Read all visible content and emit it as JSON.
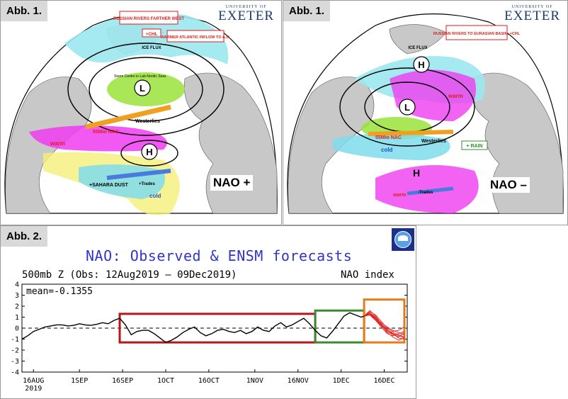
{
  "figures": {
    "fig1_label": "Abb. 1.",
    "fig2_label": "Abb. 2."
  },
  "brand": {
    "university_small": "UNIVERSITY OF",
    "university_name": "EXETER"
  },
  "nao_positive_map": {
    "phase_label": "NAO +",
    "annotations": {
      "russian_rivers": "RUSSIAN RIVERS FARTHER WEST",
      "chl": "+CHL",
      "warmer_atlantic": "WARMER ATLANTIC INFLOW TO A.O.",
      "ice_flux": "ICE FLUX",
      "storm_centre": "Storm Centre in Lab-Nordic Seas",
      "westerlies": "Westerlies",
      "warm": "warm",
      "cold": "cold",
      "sahara_dust": "+SAHARA DUST",
      "trades": "+Trades",
      "low": "L",
      "high": "H",
      "nac": "55Mio NAC"
    }
  },
  "nao_negative_map": {
    "phase_label": "NAO –",
    "annotations": {
      "russian_rivers": "RUSSIAN RIVERS TO EURASIAN BASIN, +CHL",
      "ice_flux": "ICE FLUX",
      "warm": "warm",
      "cold": "cold",
      "rain": "+ RAIN",
      "trades": "-Trades",
      "westerlies": "Westerlies",
      "low": "L",
      "high_north": "H",
      "high_south": "H",
      "nac": "55Mio NAC"
    }
  },
  "chart": {
    "title": "NAO: Observed & ENSM forecasts",
    "subtitle": "500mb Z (Obs: 12Aug2019 – 09Dec2019)",
    "index_label": "NAO index",
    "mean_label": "mean=-0.1355",
    "logo_text": "NOAA"
  },
  "chart_data": {
    "type": "line",
    "title": "NAO: Observed & ENSM forecasts",
    "subtitle": "500mb Z (Obs: 12Aug2019 – 09Dec2019)",
    "ylabel": "NAO index",
    "ylim": [
      -4,
      4
    ],
    "xlim": [
      "2019-08-12",
      "2019-12-24"
    ],
    "yticks": [
      -4,
      -3,
      -2,
      -1,
      0,
      1,
      2,
      3,
      4
    ],
    "xticks": [
      {
        "date": "2019-08-16",
        "label": "16AUG",
        "sublabel": "2019"
      },
      {
        "date": "2019-09-01",
        "label": "1SEP"
      },
      {
        "date": "2019-09-16",
        "label": "16SEP"
      },
      {
        "date": "2019-10-01",
        "label": "1OCT"
      },
      {
        "date": "2019-10-16",
        "label": "16OCT"
      },
      {
        "date": "2019-11-01",
        "label": "1NOV"
      },
      {
        "date": "2019-11-16",
        "label": "16NOV"
      },
      {
        "date": "2019-12-01",
        "label": "1DEC"
      },
      {
        "date": "2019-12-16",
        "label": "16DEC"
      }
    ],
    "mean": -0.1355,
    "reference_line": 0,
    "observed": {
      "color": "#000000",
      "x": [
        "2019-08-12",
        "2019-08-14",
        "2019-08-16",
        "2019-08-18",
        "2019-08-20",
        "2019-08-22",
        "2019-08-24",
        "2019-08-26",
        "2019-08-28",
        "2019-08-30",
        "2019-09-01",
        "2019-09-03",
        "2019-09-05",
        "2019-09-07",
        "2019-09-09",
        "2019-09-11",
        "2019-09-13",
        "2019-09-15",
        "2019-09-17",
        "2019-09-19",
        "2019-09-21",
        "2019-09-23",
        "2019-09-25",
        "2019-09-27",
        "2019-09-29",
        "2019-10-01",
        "2019-10-03",
        "2019-10-05",
        "2019-10-07",
        "2019-10-09",
        "2019-10-11",
        "2019-10-13",
        "2019-10-15",
        "2019-10-17",
        "2019-10-19",
        "2019-10-21",
        "2019-10-23",
        "2019-10-25",
        "2019-10-27",
        "2019-10-29",
        "2019-10-31",
        "2019-11-02",
        "2019-11-04",
        "2019-11-06",
        "2019-11-08",
        "2019-11-10",
        "2019-11-12",
        "2019-11-14",
        "2019-11-16",
        "2019-11-18",
        "2019-11-20",
        "2019-11-22",
        "2019-11-24",
        "2019-11-26",
        "2019-11-28",
        "2019-11-30",
        "2019-12-02",
        "2019-12-04",
        "2019-12-06",
        "2019-12-08",
        "2019-12-09"
      ],
      "y": [
        -1.0,
        -0.7,
        -0.3,
        -0.1,
        0.1,
        0.2,
        0.3,
        0.3,
        0.2,
        0.25,
        0.4,
        0.3,
        0.25,
        0.35,
        0.5,
        0.4,
        0.7,
        0.9,
        0.3,
        -0.6,
        -0.3,
        -0.2,
        -0.2,
        -0.5,
        -0.9,
        -1.3,
        -1.1,
        -0.8,
        -0.4,
        -0.1,
        0.1,
        -0.4,
        -0.7,
        -0.5,
        -0.2,
        -0.1,
        -0.3,
        -0.4,
        -0.2,
        -0.5,
        -0.3,
        0.1,
        -0.2,
        -0.3,
        0.2,
        0.5,
        0.1,
        0.3,
        0.6,
        0.9,
        0.4,
        -0.2,
        -0.7,
        -0.9,
        -0.3,
        0.4,
        1.1,
        1.4,
        1.2,
        1.0,
        1.1
      ]
    },
    "ensemble_forecast": {
      "color": "#e01e1e",
      "x": [
        "2019-12-09",
        "2019-12-11",
        "2019-12-13",
        "2019-12-15",
        "2019-12-17",
        "2019-12-19",
        "2019-12-21",
        "2019-12-23"
      ],
      "members": [
        [
          1.1,
          1.3,
          0.8,
          0.2,
          -0.3,
          -0.5,
          -0.9,
          -1.0
        ],
        [
          1.1,
          1.4,
          1.0,
          0.4,
          -0.2,
          -0.4,
          -0.6,
          -0.8
        ],
        [
          1.1,
          1.2,
          0.7,
          0.1,
          -0.5,
          -0.7,
          -0.5,
          -0.3
        ],
        [
          1.1,
          1.5,
          1.2,
          0.6,
          0.0,
          -0.3,
          -0.2,
          0.1
        ],
        [
          1.1,
          1.3,
          0.9,
          0.3,
          -0.4,
          -0.8,
          -1.1,
          -0.9
        ],
        [
          1.1,
          1.4,
          0.9,
          0.5,
          0.1,
          -0.2,
          -0.4,
          -0.6
        ],
        [
          1.1,
          1.2,
          0.8,
          0.3,
          -0.3,
          -0.6,
          -0.8,
          -0.4
        ],
        [
          1.1,
          1.6,
          1.1,
          0.4,
          -0.1,
          -0.5,
          -0.7,
          -0.9
        ]
      ]
    },
    "highlight_boxes": [
      {
        "color": "#b8141b",
        "x0": "2019-09-15",
        "x1": "2019-11-22",
        "y0": -1.3,
        "y1": 1.3
      },
      {
        "color": "#3a8a2e",
        "x0": "2019-11-22",
        "x1": "2019-12-09",
        "y0": -1.3,
        "y1": 1.6
      },
      {
        "color": "#e87a1c",
        "x0": "2019-12-09",
        "x1": "2019-12-23",
        "y0": -1.3,
        "y1": 2.6
      }
    ],
    "grid": false
  }
}
